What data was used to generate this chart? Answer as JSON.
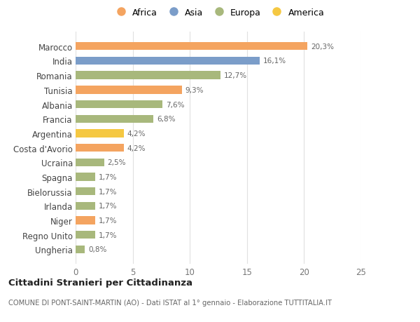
{
  "countries": [
    "Ungheria",
    "Regno Unito",
    "Niger",
    "Irlanda",
    "Bielorussia",
    "Spagna",
    "Ucraina",
    "Costa d'Avorio",
    "Argentina",
    "Francia",
    "Albania",
    "Tunisia",
    "Romania",
    "India",
    "Marocco"
  ],
  "values": [
    0.8,
    1.7,
    1.7,
    1.7,
    1.7,
    1.7,
    2.5,
    4.2,
    4.2,
    6.8,
    7.6,
    9.3,
    12.7,
    16.1,
    20.3
  ],
  "labels": [
    "0,8%",
    "1,7%",
    "1,7%",
    "1,7%",
    "1,7%",
    "1,7%",
    "2,5%",
    "4,2%",
    "4,2%",
    "6,8%",
    "7,6%",
    "9,3%",
    "12,7%",
    "16,1%",
    "20,3%"
  ],
  "continents": [
    "Europa",
    "Europa",
    "Africa",
    "Europa",
    "Europa",
    "Europa",
    "Europa",
    "Africa",
    "America",
    "Europa",
    "Europa",
    "Africa",
    "Europa",
    "Asia",
    "Africa"
  ],
  "colors": {
    "Africa": "#F4A460",
    "Asia": "#7B9DC9",
    "Europa": "#A8B87C",
    "America": "#F5C842"
  },
  "xlim": [
    0,
    25
  ],
  "xticks": [
    0,
    5,
    10,
    15,
    20,
    25
  ],
  "title": "Cittadini Stranieri per Cittadinanza",
  "subtitle": "COMUNE DI PONT-SAINT-MARTIN (AO) - Dati ISTAT al 1° gennaio - Elaborazione TUTTITALIA.IT",
  "bg_color": "#ffffff",
  "plot_bg_color": "#ffffff",
  "grid_color": "#e0e0e0",
  "text_color": "#777777",
  "label_color": "#666666"
}
